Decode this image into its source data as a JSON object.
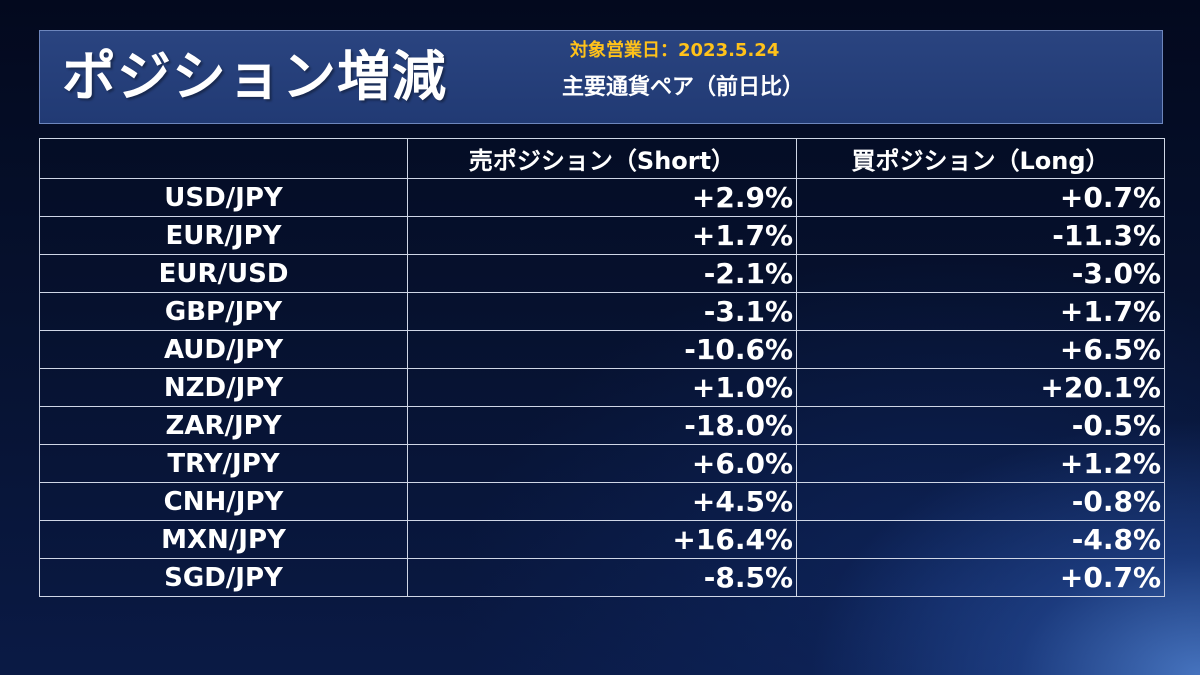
{
  "header": {
    "title": "ポジション増減",
    "date_label": "対象営業日：2023.5.24",
    "subtitle": "主要通貨ペア（前日比）"
  },
  "table": {
    "columns": [
      "",
      "売ポジション（Short）",
      "買ポジション（Long）"
    ],
    "rows": [
      {
        "pair": "USD/JPY",
        "short": "+2.9%",
        "long": "+0.7%"
      },
      {
        "pair": "EUR/JPY",
        "short": "+1.7%",
        "long": "-11.3%"
      },
      {
        "pair": "EUR/USD",
        "short": "-2.1%",
        "long": "-3.0%"
      },
      {
        "pair": "GBP/JPY",
        "short": "-3.1%",
        "long": "+1.7%"
      },
      {
        "pair": "AUD/JPY",
        "short": "-10.6%",
        "long": "+6.5%"
      },
      {
        "pair": "NZD/JPY",
        "short": "+1.0%",
        "long": "+20.1%"
      },
      {
        "pair": "ZAR/JPY",
        "short": "-18.0%",
        "long": "-0.5%"
      },
      {
        "pair": "TRY/JPY",
        "short": "+6.0%",
        "long": "+1.2%"
      },
      {
        "pair": "CNH/JPY",
        "short": "+4.5%",
        "long": "-0.8%"
      },
      {
        "pair": "MXN/JPY",
        "short": "+16.4%",
        "long": "-4.8%"
      },
      {
        "pair": "SGD/JPY",
        "short": "-8.5%",
        "long": "+0.7%"
      }
    ]
  },
  "colors": {
    "header_bg": "#213a74",
    "date_text": "#ffc21a",
    "text": "#ffffff",
    "grid": "#cfd6e6"
  }
}
